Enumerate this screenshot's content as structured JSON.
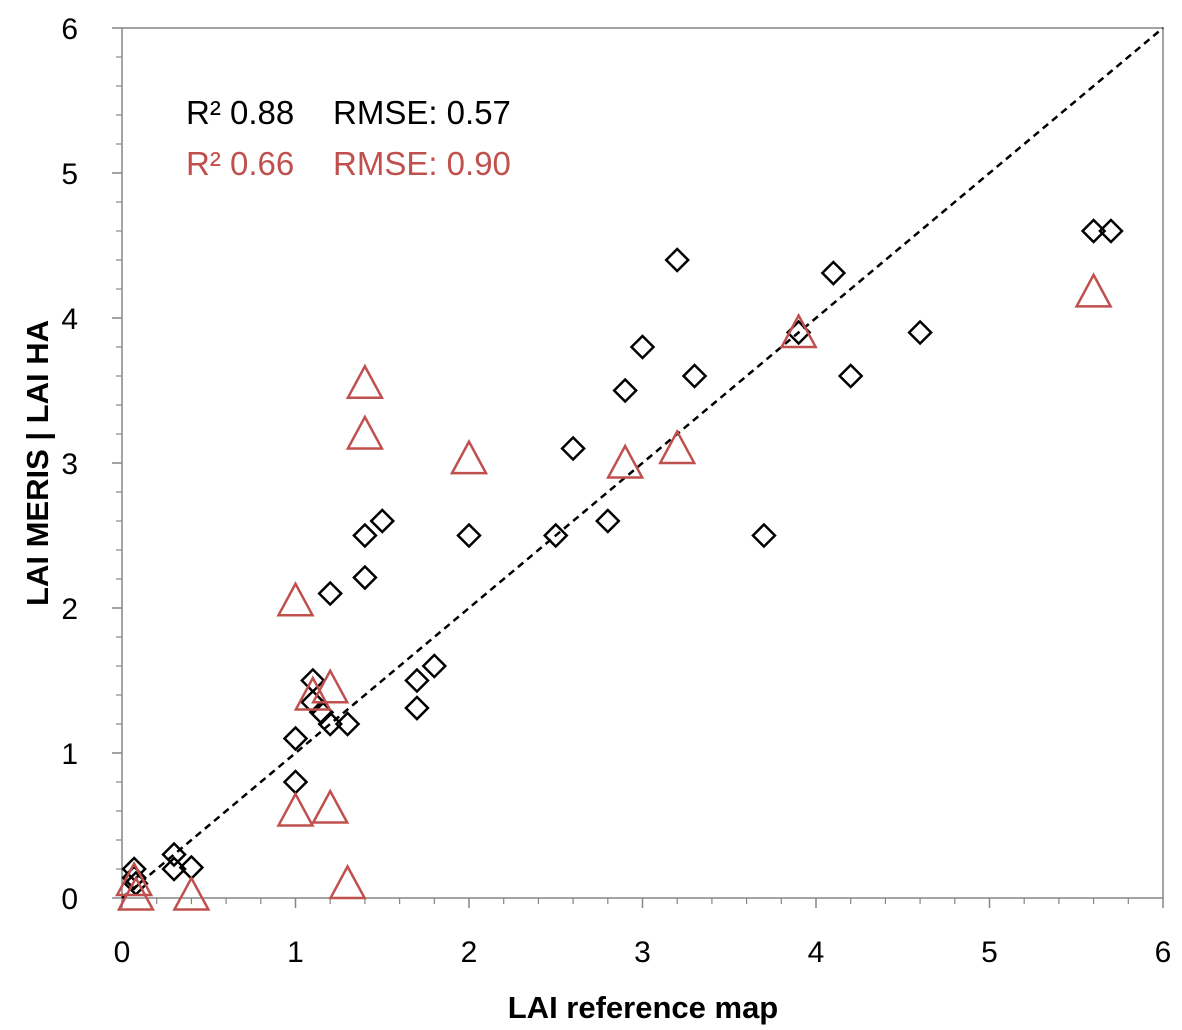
{
  "chart_data": {
    "type": "scatter",
    "title": "",
    "xlabel": "LAI reference map",
    "ylabel": "LAI MERIS | LAI HA",
    "xlim": [
      0,
      6
    ],
    "ylim": [
      0,
      6
    ],
    "xticks": [
      "0",
      "1",
      "2",
      "3",
      "4",
      "5",
      "6"
    ],
    "yticks": [
      "0",
      "1",
      "2",
      "3",
      "4",
      "5",
      "6"
    ],
    "grid": false,
    "reference_line": {
      "type": "1:1",
      "style": "dashed",
      "color": "#000000"
    },
    "annotations": [
      {
        "r2_text": "R² 0.88",
        "rmse_text": "RMSE: 0.57",
        "color": "#000000"
      },
      {
        "r2_text": "R² 0.66",
        "rmse_text": "RMSE: 0.90",
        "color": "#c0504d"
      }
    ],
    "series": [
      {
        "marker": "diamond",
        "color": "#000000",
        "points": [
          [
            0.07,
            0.2
          ],
          [
            0.08,
            0.1
          ],
          [
            0.07,
            0.14
          ],
          [
            0.3,
            0.3
          ],
          [
            0.3,
            0.2
          ],
          [
            0.4,
            0.21
          ],
          [
            1.0,
            1.1
          ],
          [
            1.0,
            0.8
          ],
          [
            1.1,
            1.5
          ],
          [
            1.1,
            1.35
          ],
          [
            1.15,
            1.28
          ],
          [
            1.2,
            1.2
          ],
          [
            1.3,
            1.2
          ],
          [
            1.2,
            2.1
          ],
          [
            1.4,
            2.21
          ],
          [
            1.4,
            2.5
          ],
          [
            1.5,
            2.6
          ],
          [
            1.7,
            1.5
          ],
          [
            1.7,
            1.31
          ],
          [
            1.8,
            1.6
          ],
          [
            2.0,
            2.5
          ],
          [
            2.5,
            2.5
          ],
          [
            2.6,
            3.1
          ],
          [
            2.8,
            2.6
          ],
          [
            2.9,
            3.5
          ],
          [
            3.0,
            3.8
          ],
          [
            3.2,
            4.4
          ],
          [
            3.3,
            3.6
          ],
          [
            3.7,
            2.5
          ],
          [
            3.9,
            3.9
          ],
          [
            4.1,
            4.31
          ],
          [
            4.2,
            3.6
          ],
          [
            4.6,
            3.9
          ],
          [
            5.6,
            4.6
          ],
          [
            5.7,
            4.6
          ]
        ]
      },
      {
        "marker": "triangle",
        "color": "#c0504d",
        "points": [
          [
            0.07,
            0.12
          ],
          [
            0.08,
            0.02
          ],
          [
            0.4,
            0.02
          ],
          [
            1.0,
            2.05
          ],
          [
            1.0,
            0.6
          ],
          [
            1.1,
            1.4
          ],
          [
            1.2,
            1.45
          ],
          [
            1.2,
            0.62
          ],
          [
            1.3,
            0.1
          ],
          [
            1.4,
            3.55
          ],
          [
            1.4,
            3.2
          ],
          [
            2.0,
            3.03
          ],
          [
            2.9,
            3.0
          ],
          [
            3.2,
            3.1
          ],
          [
            3.9,
            3.9
          ],
          [
            5.6,
            4.18
          ]
        ]
      }
    ]
  }
}
